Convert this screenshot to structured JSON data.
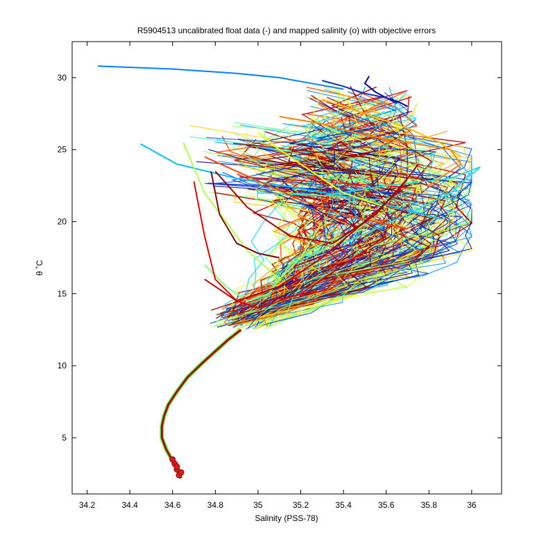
{
  "chart_data": {
    "type": "line",
    "title": "R5904513 uncalibrated float data (-) and mapped salinity (o) with objective errors",
    "xlabel": "Salinity (PSS-78)",
    "ylabel": "θ ˚C",
    "xlim": [
      34.13,
      36.14
    ],
    "ylim": [
      1.1,
      32.5
    ],
    "xticks": [
      34.2,
      34.4,
      34.6,
      34.8,
      35,
      35.2,
      35.4,
      35.6,
      35.8,
      36
    ],
    "xtick_labels": [
      "34.2",
      "34.4",
      "34.6",
      "34.8",
      "35",
      "35.2",
      "35.4",
      "35.6",
      "35.8",
      "36"
    ],
    "yticks": [
      5,
      10,
      15,
      20,
      25,
      30
    ],
    "ytick_labels": [
      "5",
      "10",
      "15",
      "20",
      "25",
      "30"
    ],
    "grid": false,
    "legend": "none",
    "colormap": "jet",
    "deep_curve": {
      "salinity": [
        34.64,
        34.62,
        34.6,
        34.57,
        34.55,
        34.55,
        34.56,
        34.58,
        34.62,
        34.67,
        34.74,
        34.8,
        34.86,
        34.92
      ],
      "theta": [
        2.2,
        2.8,
        3.4,
        4.2,
        5.0,
        5.8,
        6.5,
        7.3,
        8.2,
        9.2,
        10.2,
        11.0,
        11.8,
        12.5
      ]
    },
    "mapped_points": {
      "salinity": [
        34.63,
        34.62,
        34.61,
        34.6,
        34.62,
        34.64
      ],
      "theta": [
        2.4,
        2.8,
        3.2,
        3.5,
        3.0,
        2.6
      ],
      "color": "#d42020"
    },
    "series": [
      {
        "color": "#000090",
        "salinity": [
          35.52,
          35.5,
          35.55,
          35.6,
          35.66,
          35.7
        ],
        "theta": [
          30.1,
          29.6,
          29.0,
          28.6,
          28.3,
          28.0
        ]
      },
      {
        "color": "#0030d0",
        "salinity": [
          35.3,
          35.4,
          35.5,
          35.6,
          35.65
        ],
        "theta": [
          29.8,
          29.4,
          28.9,
          28.6,
          28.2
        ]
      },
      {
        "color": "#0080ff",
        "salinity": [
          34.25,
          34.6,
          34.9,
          35.1,
          35.25,
          35.4
        ],
        "theta": [
          30.8,
          30.6,
          30.3,
          30.0,
          29.6,
          29.2
        ]
      },
      {
        "color": "#00c0ff",
        "salinity": [
          34.45,
          34.62,
          34.9,
          35.2,
          35.5,
          35.7,
          35.85
        ],
        "theta": [
          25.4,
          24.0,
          23.0,
          22.3,
          21.5,
          20.8,
          20.2
        ]
      },
      {
        "color": "#20e0e0",
        "salinity": [
          35.0,
          35.3,
          35.6,
          35.9,
          36.04,
          35.9,
          35.7,
          35.4
        ],
        "theta": [
          22.0,
          21.8,
          22.5,
          23.0,
          23.8,
          22.0,
          20.5,
          18.5
        ]
      },
      {
        "color": "#80ff80",
        "salinity": [
          34.75,
          34.85,
          34.95,
          35.05,
          35.15,
          35.3,
          35.5
        ],
        "theta": [
          17.0,
          15.5,
          14.5,
          15.0,
          17.0,
          18.5,
          19.5
        ]
      },
      {
        "color": "#b0ff50",
        "salinity": [
          34.65,
          34.75,
          34.95,
          35.1,
          35.2,
          35.3
        ],
        "theta": [
          25.5,
          22.0,
          18.0,
          16.0,
          17.5,
          20.0
        ]
      },
      {
        "color": "#ffff00",
        "salinity": [
          35.0,
          35.1,
          35.25,
          35.4,
          35.6
        ],
        "theta": [
          26.2,
          25.0,
          23.5,
          22.0,
          21.0
        ]
      },
      {
        "color": "#ffc000",
        "salinity": [
          35.3,
          35.5,
          35.7,
          35.85,
          35.95
        ],
        "theta": [
          28.5,
          27.5,
          26.5,
          25.5,
          24.5
        ]
      },
      {
        "color": "#ff8000",
        "salinity": [
          35.1,
          35.3,
          35.5,
          35.7,
          35.9,
          35.95,
          35.8
        ],
        "theta": [
          27.3,
          26.8,
          26.0,
          25.5,
          25.0,
          24.0,
          22.5
        ]
      },
      {
        "color": "#ff4000",
        "salinity": [
          34.75,
          34.9,
          35.05,
          35.2,
          35.4,
          35.55,
          35.7
        ],
        "theta": [
          24.5,
          23.5,
          22.5,
          21.5,
          20.5,
          20.0,
          19.5
        ]
      },
      {
        "color": "#e00000",
        "salinity": [
          34.7,
          34.75,
          34.8,
          34.9,
          35.0,
          35.2,
          35.4,
          35.6
        ],
        "theta": [
          22.8,
          19.0,
          16.0,
          14.5,
          14.0,
          15.0,
          17.0,
          19.0
        ]
      },
      {
        "color": "#c00000",
        "salinity": [
          34.75,
          34.9,
          35.1,
          35.3,
          35.5,
          35.65,
          35.75
        ],
        "theta": [
          16.0,
          14.5,
          15.5,
          17.5,
          20.0,
          22.0,
          24.0
        ]
      },
      {
        "color": "#a00000",
        "salinity": [
          34.8,
          34.95,
          35.15,
          35.35,
          35.55,
          35.7
        ],
        "theta": [
          23.5,
          21.0,
          19.0,
          18.5,
          20.5,
          23.0
        ]
      },
      {
        "color": "#800000",
        "salinity": [
          34.78,
          34.82,
          34.9,
          35.0,
          35.1
        ],
        "theta": [
          23.5,
          20.5,
          18.5,
          17.8,
          17.5
        ]
      }
    ]
  }
}
